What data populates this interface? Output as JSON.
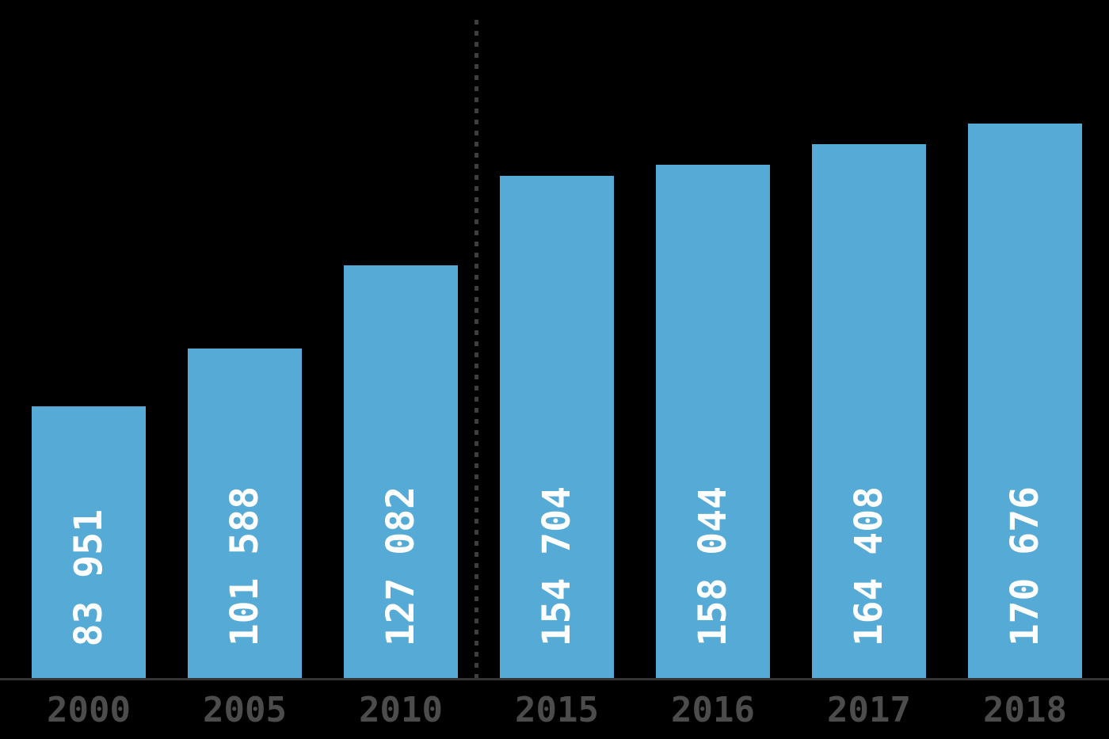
{
  "background_color": "#000000",
  "chart_data": {
    "type": "bar",
    "title": "",
    "xlabel": "",
    "ylabel": "",
    "categories": [
      "2000",
      "2005",
      "2010",
      "2015",
      "2016",
      "2017",
      "2018"
    ],
    "values": [
      83951,
      101588,
      127082,
      154704,
      158044,
      164408,
      170676
    ],
    "value_labels": [
      "83 951",
      "101 588",
      "127 082",
      "154 704",
      "158 044",
      "164 408",
      "170 676"
    ],
    "ylim": [
      0,
      170676
    ],
    "grid": false,
    "legend": false,
    "bar_color": "#56abd6",
    "value_label_color": "#ffffff",
    "tick_label_color": "#4c4c4c",
    "axis_line_color": "#353535",
    "divider_color": "#3e3e3e",
    "divider_between": [
      "2010",
      "2015"
    ]
  }
}
